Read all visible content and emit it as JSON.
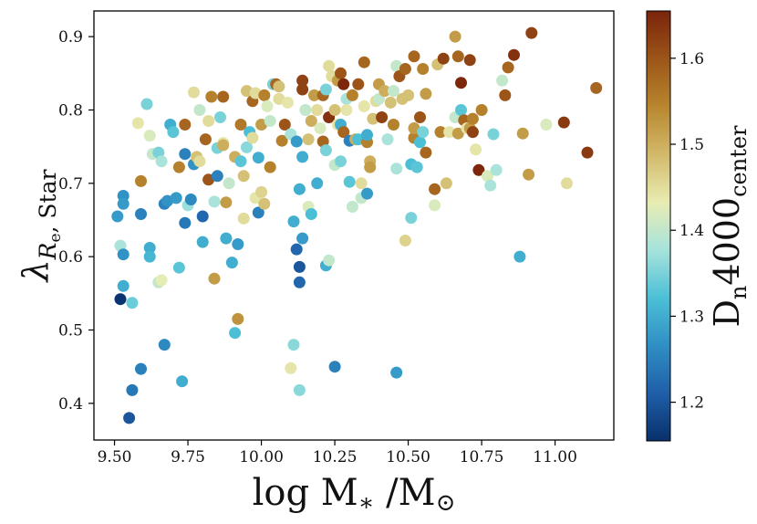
{
  "chart_data": {
    "type": "scatter",
    "title": "",
    "xlabel": "log M* / M⊙",
    "ylabel": "λRe, Star",
    "xlim": [
      9.43,
      11.2
    ],
    "ylim": [
      0.35,
      0.935
    ],
    "xticks": [
      9.5,
      9.75,
      10.0,
      10.25,
      10.5,
      10.75,
      11.0
    ],
    "xtick_labels": [
      "9.50",
      "9.75",
      "10.00",
      "10.25",
      "10.50",
      "10.75",
      "11.00"
    ],
    "yticks": [
      0.4,
      0.5,
      0.6,
      0.7,
      0.8,
      0.9
    ],
    "ytick_labels": [
      "0.4",
      "0.5",
      "0.6",
      "0.7",
      "0.8",
      "0.9"
    ],
    "colorbar": {
      "label": "Dn4000center",
      "range": [
        1.155,
        1.655
      ],
      "ticks": [
        1.2,
        1.3,
        1.4,
        1.5,
        1.6
      ],
      "tick_labels": [
        "1.2",
        "1.3",
        "1.4",
        "1.5",
        "1.6"
      ],
      "colormap": [
        "#08306b",
        "#1f5fa8",
        "#2f8fc4",
        "#4cc0d6",
        "#a7e3dc",
        "#e8ecb2",
        "#d2b96a",
        "#b8862e",
        "#9c5518",
        "#7a230b"
      ]
    },
    "points": [
      [
        9.51,
        0.655,
        1.28
      ],
      [
        9.52,
        0.615,
        1.38
      ],
      [
        9.53,
        0.683,
        1.27
      ],
      [
        9.53,
        0.672,
        1.28
      ],
      [
        9.53,
        0.603,
        1.27
      ],
      [
        9.52,
        0.542,
        1.16
      ],
      [
        9.53,
        0.56,
        1.3
      ],
      [
        9.56,
        0.537,
        1.34
      ],
      [
        9.55,
        0.38,
        1.2
      ],
      [
        9.56,
        0.418,
        1.24
      ],
      [
        9.59,
        0.447,
        1.25
      ],
      [
        9.59,
        0.658,
        1.25
      ],
      [
        9.58,
        0.782,
        1.44
      ],
      [
        9.59,
        0.703,
        1.55
      ],
      [
        9.61,
        0.808,
        1.35
      ],
      [
        9.62,
        0.765,
        1.42
      ],
      [
        9.63,
        0.74,
        1.4
      ],
      [
        9.62,
        0.612,
        1.3
      ],
      [
        9.62,
        0.6,
        1.31
      ],
      [
        9.65,
        0.565,
        1.4
      ],
      [
        9.66,
        0.568,
        1.43
      ],
      [
        9.65,
        0.742,
        1.35
      ],
      [
        9.66,
        0.73,
        1.38
      ],
      [
        9.67,
        0.672,
        1.25
      ],
      [
        9.68,
        0.676,
        1.27
      ],
      [
        9.67,
        0.48,
        1.26
      ],
      [
        9.69,
        0.78,
        1.3
      ],
      [
        9.7,
        0.77,
        1.33
      ],
      [
        9.71,
        0.68,
        1.28
      ],
      [
        9.72,
        0.585,
        1.33
      ],
      [
        9.73,
        0.43,
        1.3
      ],
      [
        9.72,
        0.722,
        1.55
      ],
      [
        9.74,
        0.78,
        1.58
      ],
      [
        9.74,
        0.74,
        1.25
      ],
      [
        9.74,
        0.646,
        1.24
      ],
      [
        9.75,
        0.67,
        1.37
      ],
      [
        9.76,
        0.678,
        1.26
      ],
      [
        9.77,
        0.726,
        1.27
      ],
      [
        9.77,
        0.824,
        1.45
      ],
      [
        9.78,
        0.736,
        1.48
      ],
      [
        9.79,
        0.8,
        1.4
      ],
      [
        9.79,
        0.73,
        1.45
      ],
      [
        9.8,
        0.655,
        1.22
      ],
      [
        9.8,
        0.62,
        1.3
      ],
      [
        9.81,
        0.76,
        1.58
      ],
      [
        9.82,
        0.705,
        1.6
      ],
      [
        9.82,
        0.785,
        1.45
      ],
      [
        9.83,
        0.818,
        1.55
      ],
      [
        9.84,
        0.675,
        1.38
      ],
      [
        9.84,
        0.57,
        1.52
      ],
      [
        9.85,
        0.71,
        1.25
      ],
      [
        9.85,
        0.748,
        1.35
      ],
      [
        9.86,
        0.79,
        1.35
      ],
      [
        9.87,
        0.755,
        1.44
      ],
      [
        9.87,
        0.818,
        1.58
      ],
      [
        9.87,
        0.752,
        1.5
      ],
      [
        9.88,
        0.674,
        1.52
      ],
      [
        9.88,
        0.625,
        1.3
      ],
      [
        9.89,
        0.7,
        1.4
      ],
      [
        9.9,
        0.592,
        1.3
      ],
      [
        9.91,
        0.736,
        1.5
      ],
      [
        9.91,
        0.496,
        1.32
      ],
      [
        9.92,
        0.515,
        1.53
      ],
      [
        9.92,
        0.617,
        1.28
      ],
      [
        9.93,
        0.78,
        1.56
      ],
      [
        9.93,
        0.73,
        1.33
      ],
      [
        9.94,
        0.652,
        1.45
      ],
      [
        9.94,
        0.71,
        1.48
      ],
      [
        9.95,
        0.826,
        1.48
      ],
      [
        9.95,
        0.749,
        1.36
      ],
      [
        9.96,
        0.77,
        1.32
      ],
      [
        9.97,
        0.762,
        1.45
      ],
      [
        9.97,
        0.812,
        1.58
      ],
      [
        9.98,
        0.823,
        1.45
      ],
      [
        9.98,
        0.68,
        1.44
      ],
      [
        9.99,
        0.66,
        1.25
      ],
      [
        9.99,
        0.735,
        1.3
      ],
      [
        10.0,
        0.78,
        1.52
      ],
      [
        10.0,
        0.688,
        1.46
      ],
      [
        10.01,
        0.672,
        1.48
      ],
      [
        10.01,
        0.82,
        1.55
      ],
      [
        10.02,
        0.805,
        1.42
      ],
      [
        10.03,
        0.785,
        1.4
      ],
      [
        10.03,
        0.722,
        1.55
      ],
      [
        10.04,
        0.835,
        1.35
      ],
      [
        10.05,
        0.835,
        1.58
      ],
      [
        10.06,
        0.832,
        1.48
      ],
      [
        10.06,
        0.815,
        1.45
      ],
      [
        10.07,
        0.758,
        1.55
      ],
      [
        10.08,
        0.78,
        1.6
      ],
      [
        10.09,
        0.81,
        1.44
      ],
      [
        10.1,
        0.767,
        1.38
      ],
      [
        10.1,
        0.448,
        1.44
      ],
      [
        10.11,
        0.48,
        1.36
      ],
      [
        10.11,
        0.648,
        1.3
      ],
      [
        10.12,
        0.61,
        1.22
      ],
      [
        10.12,
        0.757,
        1.28
      ],
      [
        10.13,
        0.418,
        1.36
      ],
      [
        10.13,
        0.565,
        1.22
      ],
      [
        10.13,
        0.586,
        1.2
      ],
      [
        10.14,
        0.625,
        1.28
      ],
      [
        10.13,
        0.692,
        1.3
      ],
      [
        10.14,
        0.736,
        1.3
      ],
      [
        10.14,
        0.828,
        1.62
      ],
      [
        10.14,
        0.84,
        1.62
      ],
      [
        10.15,
        0.8,
        1.4
      ],
      [
        10.16,
        0.76,
        1.48
      ],
      [
        10.16,
        0.668,
        1.42
      ],
      [
        10.17,
        0.658,
        1.32
      ],
      [
        10.17,
        0.785,
        1.5
      ],
      [
        10.18,
        0.82,
        1.52
      ],
      [
        10.19,
        0.8,
        1.45
      ],
      [
        10.19,
        0.7,
        1.3
      ],
      [
        10.2,
        0.775,
        1.42
      ],
      [
        10.21,
        0.82,
        1.58
      ],
      [
        10.21,
        0.757,
        1.58
      ],
      [
        10.22,
        0.745,
        1.35
      ],
      [
        10.22,
        0.828,
        1.35
      ],
      [
        10.22,
        0.588,
        1.3
      ],
      [
        10.23,
        0.595,
        1.4
      ],
      [
        10.23,
        0.79,
        1.64
      ],
      [
        10.23,
        0.86,
        1.45
      ],
      [
        10.24,
        0.846,
        1.45
      ],
      [
        10.25,
        0.8,
        1.48
      ],
      [
        10.25,
        0.725,
        1.4
      ],
      [
        10.25,
        0.45,
        1.25
      ],
      [
        10.26,
        0.84,
        1.52
      ],
      [
        10.26,
        0.78,
        1.44
      ],
      [
        10.27,
        0.85,
        1.6
      ],
      [
        10.27,
        0.78,
        1.3
      ],
      [
        10.27,
        0.73,
        1.35
      ],
      [
        10.28,
        0.835,
        1.65
      ],
      [
        10.28,
        0.77,
        1.58
      ],
      [
        10.29,
        0.815,
        1.38
      ],
      [
        10.29,
        0.8,
        1.44
      ],
      [
        10.3,
        0.758,
        1.25
      ],
      [
        10.3,
        0.702,
        1.33
      ],
      [
        10.31,
        0.82,
        1.55
      ],
      [
        10.31,
        0.668,
        1.4
      ],
      [
        10.32,
        0.76,
        1.5
      ],
      [
        10.33,
        0.835,
        1.6
      ],
      [
        10.33,
        0.76,
        1.32
      ],
      [
        10.34,
        0.7,
        1.45
      ],
      [
        10.34,
        0.68,
        1.4
      ],
      [
        10.35,
        0.865,
        1.58
      ],
      [
        10.35,
        0.805,
        1.44
      ],
      [
        10.36,
        0.756,
        1.55
      ],
      [
        10.36,
        0.686,
        1.28
      ],
      [
        10.36,
        0.766,
        1.3
      ],
      [
        10.37,
        0.73,
        1.5
      ],
      [
        10.37,
        0.722,
        1.52
      ],
      [
        10.38,
        0.788,
        1.48
      ],
      [
        10.39,
        0.812,
        1.45
      ],
      [
        10.4,
        0.835,
        1.52
      ],
      [
        10.4,
        0.815,
        1.4
      ],
      [
        10.41,
        0.79,
        1.62
      ],
      [
        10.42,
        0.826,
        1.5
      ],
      [
        10.43,
        0.76,
        1.38
      ],
      [
        10.44,
        0.81,
        1.48
      ],
      [
        10.45,
        0.78,
        1.55
      ],
      [
        10.45,
        0.826,
        1.4
      ],
      [
        10.46,
        0.86,
        1.4
      ],
      [
        10.46,
        0.72,
        1.38
      ],
      [
        10.46,
        0.442,
        1.28
      ],
      [
        10.47,
        0.846,
        1.6
      ],
      [
        10.48,
        0.815,
        1.48
      ],
      [
        10.49,
        0.856,
        1.58
      ],
      [
        10.49,
        0.622,
        1.46
      ],
      [
        10.5,
        0.82,
        1.48
      ],
      [
        10.51,
        0.653,
        1.35
      ],
      [
        10.51,
        0.726,
        1.32
      ],
      [
        10.52,
        0.873,
        1.58
      ],
      [
        10.52,
        0.762,
        1.55
      ],
      [
        10.52,
        0.775,
        1.52
      ],
      [
        10.53,
        0.722,
        1.33
      ],
      [
        10.54,
        0.756,
        1.32
      ],
      [
        10.54,
        0.79,
        1.6
      ],
      [
        10.55,
        0.856,
        1.55
      ],
      [
        10.55,
        0.77,
        1.35
      ],
      [
        10.56,
        0.742,
        1.58
      ],
      [
        10.56,
        0.822,
        1.52
      ],
      [
        10.59,
        0.67,
        1.42
      ],
      [
        10.59,
        0.692,
        1.58
      ],
      [
        10.6,
        0.862,
        1.48
      ],
      [
        10.61,
        0.77,
        1.55
      ],
      [
        10.62,
        0.87,
        1.62
      ],
      [
        10.63,
        0.7,
        1.48
      ],
      [
        10.64,
        0.77,
        1.44
      ],
      [
        10.66,
        0.79,
        1.4
      ],
      [
        10.66,
        0.9,
        1.52
      ],
      [
        10.67,
        0.873,
        1.58
      ],
      [
        10.67,
        0.768,
        1.52
      ],
      [
        10.68,
        0.837,
        1.65
      ],
      [
        10.68,
        0.8,
        1.33
      ],
      [
        10.69,
        0.786,
        1.58
      ],
      [
        10.7,
        0.775,
        1.44
      ],
      [
        10.71,
        0.775,
        1.52
      ],
      [
        10.71,
        0.868,
        1.62
      ],
      [
        10.72,
        0.77,
        1.62
      ],
      [
        10.72,
        0.788,
        1.55
      ],
      [
        10.73,
        0.746,
        1.44
      ],
      [
        10.74,
        0.718,
        1.65
      ],
      [
        10.75,
        0.8,
        1.55
      ],
      [
        10.77,
        0.71,
        1.42
      ],
      [
        10.78,
        0.697,
        1.38
      ],
      [
        10.79,
        0.767,
        1.35
      ],
      [
        10.8,
        0.718,
        1.38
      ],
      [
        10.82,
        0.84,
        1.4
      ],
      [
        10.83,
        0.82,
        1.6
      ],
      [
        10.84,
        0.858,
        1.58
      ],
      [
        10.86,
        0.875,
        1.64
      ],
      [
        10.88,
        0.6,
        1.3
      ],
      [
        10.89,
        0.768,
        1.52
      ],
      [
        10.91,
        0.712,
        1.52
      ],
      [
        10.92,
        0.905,
        1.62
      ],
      [
        10.97,
        0.78,
        1.42
      ],
      [
        11.03,
        0.783,
        1.63
      ],
      [
        11.04,
        0.7,
        1.45
      ],
      [
        11.11,
        0.742,
        1.63
      ],
      [
        11.14,
        0.83,
        1.58
      ]
    ]
  }
}
